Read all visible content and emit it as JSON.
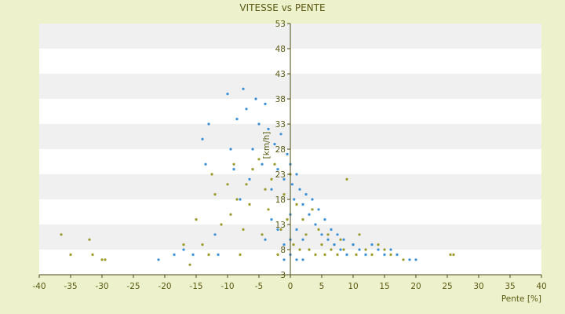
{
  "chart_data": {
    "type": "scatter",
    "title": "VITESSE vs PENTE",
    "xlabel": "Pente [%]",
    "ylabel": "[km/h]",
    "xlim": [
      -40,
      40
    ],
    "ylim": [
      3,
      53
    ],
    "x_ticks": [
      "-40",
      "-35",
      "-30",
      "-25",
      "-20",
      "-15",
      "-10",
      "-5",
      "0",
      "5",
      "10",
      "15",
      "20",
      "25",
      "30",
      "35",
      "40"
    ],
    "y_ticks": [
      "3",
      "8",
      "13",
      "18",
      "23",
      "28",
      "33",
      "38",
      "43",
      "48",
      "53"
    ],
    "grid": "horizontal alternating bands",
    "legend": "none",
    "colors": {
      "background": "#eef2cc",
      "band_light": "#ffffff",
      "band_dark": "#f0f0f0",
      "axis": "#4a4a14",
      "series_1": "#3a8fd6",
      "series_2": "#9a9a2a"
    },
    "series": [
      {
        "color": "#9a9a2a",
        "points": [
          [
            -36.5,
            11
          ],
          [
            -35,
            7
          ],
          [
            -32,
            10
          ],
          [
            -31.5,
            7
          ],
          [
            -30,
            6
          ],
          [
            -29.5,
            6
          ],
          [
            -17,
            9
          ],
          [
            -16,
            5
          ],
          [
            -15,
            14
          ],
          [
            -14,
            9
          ],
          [
            -13,
            7
          ],
          [
            -12.5,
            23
          ],
          [
            -12,
            19
          ],
          [
            -11,
            13
          ],
          [
            -10,
            21
          ],
          [
            -9.5,
            15
          ],
          [
            -9,
            25
          ],
          [
            -8.5,
            18
          ],
          [
            -8,
            7
          ],
          [
            -7.5,
            12
          ],
          [
            -7,
            21
          ],
          [
            -6.5,
            17
          ],
          [
            -6,
            24
          ],
          [
            -5,
            26
          ],
          [
            -4.5,
            11
          ],
          [
            -4,
            20
          ],
          [
            -3.5,
            16
          ],
          [
            -3,
            22
          ],
          [
            -2.5,
            25
          ],
          [
            -2,
            7
          ],
          [
            -1.5,
            12
          ],
          [
            -1,
            19
          ],
          [
            -0.5,
            14
          ],
          [
            0,
            23
          ],
          [
            0.5,
            9
          ],
          [
            1,
            17
          ],
          [
            1.5,
            8
          ],
          [
            2,
            14
          ],
          [
            2.5,
            11
          ],
          [
            3,
            8
          ],
          [
            3.5,
            16
          ],
          [
            4,
            7
          ],
          [
            4.5,
            12
          ],
          [
            5,
            9
          ],
          [
            5.5,
            7
          ],
          [
            6,
            11
          ],
          [
            6.5,
            8
          ],
          [
            7,
            9
          ],
          [
            7.5,
            7
          ],
          [
            8,
            10
          ],
          [
            8.5,
            8
          ],
          [
            9,
            22
          ],
          [
            10,
            9
          ],
          [
            10.5,
            7
          ],
          [
            11,
            11
          ],
          [
            12,
            8
          ],
          [
            13,
            7
          ],
          [
            14,
            9
          ],
          [
            15,
            8
          ],
          [
            16,
            7
          ],
          [
            18,
            6
          ],
          [
            25.5,
            7
          ],
          [
            26,
            7
          ]
        ]
      },
      {
        "color": "#3a8fd6",
        "points": [
          [
            -21,
            6
          ],
          [
            -18.5,
            7
          ],
          [
            -17,
            8
          ],
          [
            -15.5,
            7
          ],
          [
            -14,
            30
          ],
          [
            -13.5,
            25
          ],
          [
            -13,
            33
          ],
          [
            -12,
            11
          ],
          [
            -11.5,
            7
          ],
          [
            -10,
            39
          ],
          [
            -9.5,
            28
          ],
          [
            -9,
            24
          ],
          [
            -8.5,
            34
          ],
          [
            -8,
            18
          ],
          [
            -7.5,
            40
          ],
          [
            -7,
            36
          ],
          [
            -6.5,
            22
          ],
          [
            -6,
            28
          ],
          [
            -5.5,
            38
          ],
          [
            -5,
            33
          ],
          [
            -4.5,
            25
          ],
          [
            -4,
            37
          ],
          [
            -3.5,
            32
          ],
          [
            -3,
            20
          ],
          [
            -2.5,
            29
          ],
          [
            -2,
            24
          ],
          [
            -1.5,
            31
          ],
          [
            -1,
            22
          ],
          [
            -0.5,
            27
          ],
          [
            0,
            25
          ],
          [
            0.3,
            21
          ],
          [
            0.6,
            18
          ],
          [
            1,
            23
          ],
          [
            1.5,
            20
          ],
          [
            2,
            17
          ],
          [
            2.5,
            19
          ],
          [
            3,
            15
          ],
          [
            3.5,
            18
          ],
          [
            4,
            13
          ],
          [
            4.5,
            16
          ],
          [
            5,
            11
          ],
          [
            5.5,
            14
          ],
          [
            6,
            10
          ],
          [
            6.5,
            12
          ],
          [
            7,
            9
          ],
          [
            7.5,
            11
          ],
          [
            8,
            8
          ],
          [
            8.5,
            10
          ],
          [
            9,
            7
          ],
          [
            10,
            9
          ],
          [
            11,
            8
          ],
          [
            12,
            7
          ],
          [
            13,
            9
          ],
          [
            14,
            8
          ],
          [
            15,
            7
          ],
          [
            16,
            8
          ],
          [
            17,
            7
          ],
          [
            19,
            6
          ],
          [
            20,
            6
          ],
          [
            -2,
            12
          ],
          [
            -1,
            9
          ],
          [
            0,
            15
          ],
          [
            1,
            12
          ],
          [
            2,
            10
          ],
          [
            -3,
            14
          ],
          [
            -4,
            10
          ],
          [
            0,
            7
          ],
          [
            1,
            6
          ],
          [
            -1,
            6
          ],
          [
            2,
            6
          ],
          [
            0,
            10
          ]
        ]
      }
    ]
  }
}
